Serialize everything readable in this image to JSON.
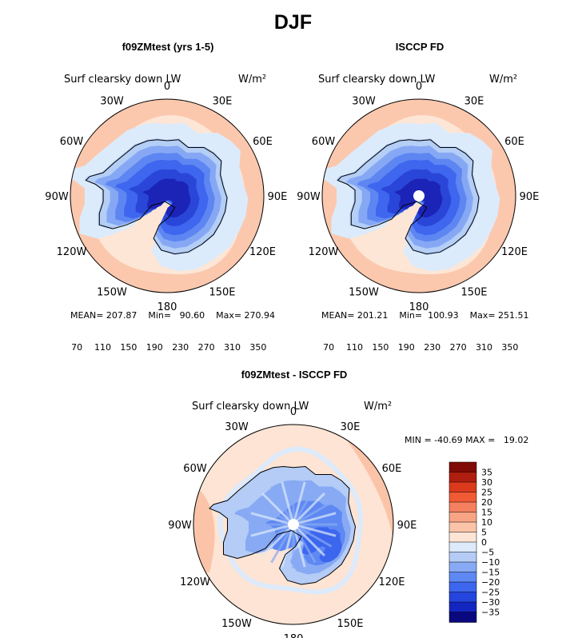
{
  "main_title": "DJF",
  "units": "W/m²",
  "variable_label": "Surf clearsky down LW",
  "lon_labels": [
    "0",
    "30E",
    "60E",
    "90E",
    "120E",
    "150E",
    "180",
    "150W",
    "120W",
    "90W",
    "60W",
    "30W"
  ],
  "colors": {
    "abs_scale": [
      "#08068c",
      "#1c24b8",
      "#2a46d8",
      "#3e66ee",
      "#5e86f2",
      "#86a8f4",
      "#b4cef6",
      "#dcebfb",
      "#fde6d6",
      "#fbc8ae",
      "#f8a888",
      "#f48462",
      "#f05a34",
      "#dc3a1c",
      "#b8200f",
      "#820c06"
    ],
    "diff_scale": [
      "#09087e",
      "#1426c0",
      "#2446de",
      "#3c66ee",
      "#5e88f2",
      "#88aaf4",
      "#b4ccf6",
      "#dceafb",
      "#fde4d4",
      "#fbc4a8",
      "#f8a484",
      "#f48060",
      "#f05a34",
      "#dc3a1c",
      "#b01e0f",
      "#800a06"
    ]
  },
  "chart_data": [
    {
      "type": "heatmap",
      "projection": "south-polar-stereographic",
      "title": "f09ZMtest (yrs 1-5)",
      "variable": "Surf clearsky down LW",
      "units": "W/m²",
      "stats": {
        "mean": 207.87,
        "min": 90.6,
        "max": 270.94
      },
      "stats_text": "MEAN= 207.87    Min=   90.60    Max= 270.94",
      "colorbar": {
        "orientation": "horizontal",
        "levels": [
          70,
          110,
          150,
          190,
          230,
          270,
          310,
          350
        ],
        "level_step": 20,
        "range": [
          60,
          360
        ]
      }
    },
    {
      "type": "heatmap",
      "projection": "south-polar-stereographic",
      "title": "ISCCP FD",
      "variable": "Surf clearsky down LW",
      "units": "W/m²",
      "stats": {
        "mean": 201.21,
        "min": 100.93,
        "max": 251.51
      },
      "stats_text": "MEAN= 201.21    Min=  100.93    Max= 251.51",
      "colorbar": {
        "orientation": "horizontal",
        "levels": [
          70,
          110,
          150,
          190,
          230,
          270,
          310,
          350
        ],
        "level_step": 20,
        "range": [
          60,
          360
        ]
      }
    },
    {
      "type": "heatmap",
      "projection": "south-polar-stereographic",
      "title": "f09ZMtest - ISCCP FD",
      "variable": "Surf clearsky down LW",
      "units": "W/m²",
      "stats": {
        "min": -40.69,
        "max": 19.02
      },
      "stats_text": "MIN = -40.69 MAX =   19.02",
      "colorbar": {
        "orientation": "vertical",
        "levels": [
          35,
          30,
          25,
          20,
          15,
          10,
          5,
          0,
          -5,
          -10,
          -15,
          -20,
          -25,
          -30,
          -35
        ],
        "range": [
          -40,
          40
        ]
      }
    }
  ]
}
